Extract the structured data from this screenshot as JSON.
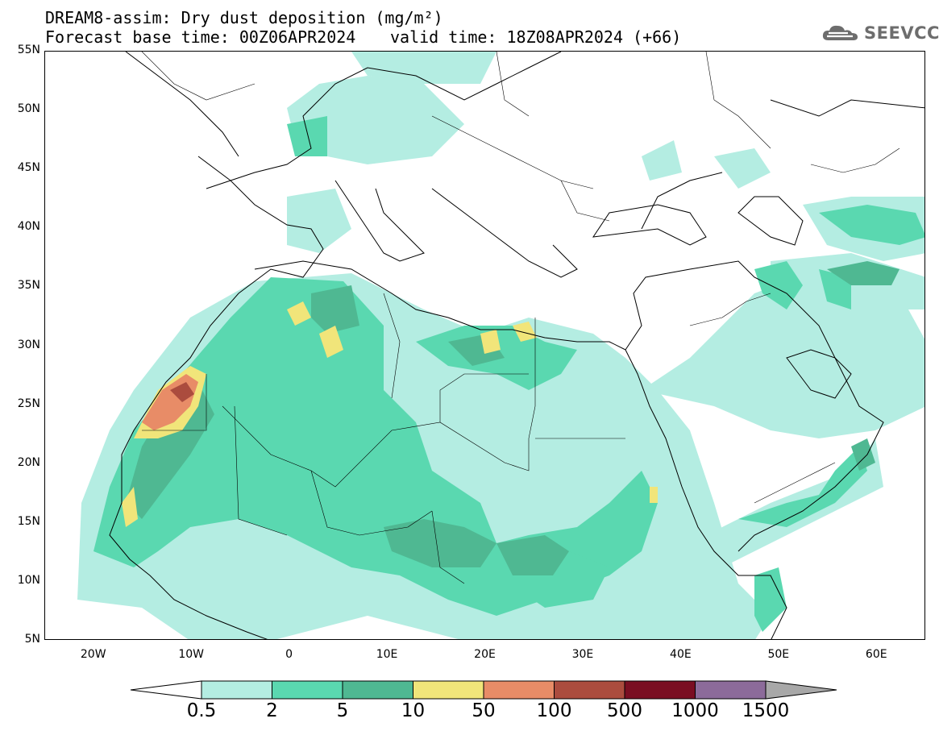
{
  "header": {
    "title_line1": "DREAM8-assim: Dry dust deposition (mg/m²)",
    "title_line2": "Forecast base time: 00Z06APR2024",
    "valid_time": "valid time: 18Z08APR2024 (+66)",
    "logo_text": "SEEVCCC",
    "logo_icon": "cloud-logo-icon"
  },
  "map": {
    "projection": "cylindrical equidistant",
    "lon_range": [
      -25,
      65
    ],
    "lat_range": [
      5,
      55
    ],
    "lat_labels": [
      "55N",
      "50N",
      "45N",
      "40N",
      "35N",
      "30N",
      "25N",
      "20N",
      "15N",
      "10N",
      "5N"
    ],
    "lon_labels": [
      "20W",
      "10W",
      "0",
      "10E",
      "20E",
      "30E",
      "40E",
      "50E",
      "60E"
    ],
    "field": "dry dust deposition"
  },
  "colorbar": {
    "labels": [
      "0.5",
      "2",
      "5",
      "10",
      "50",
      "100",
      "500",
      "1000",
      "1500"
    ],
    "colors": [
      "#b4ede2",
      "#5ad8b0",
      "#4fb892",
      "#f1e57a",
      "#e88c67",
      "#ab4c3e",
      "#7a0e22",
      "#8c6b9a"
    ],
    "under_color": "#ffffff",
    "over_color": "#a8a8a8"
  },
  "colors": {
    "land_border": "#000000",
    "ocean": "#ffffff"
  }
}
